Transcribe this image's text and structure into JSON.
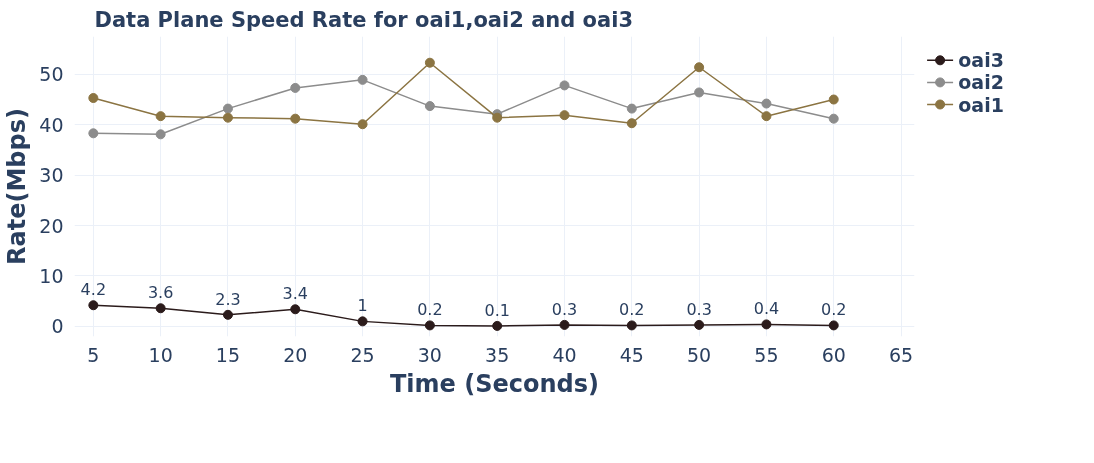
{
  "chart_data": {
    "type": "line",
    "title": "Data Plane Speed Rate for oai1,oai2 and oai3",
    "xlabel": "Time (Seconds)",
    "ylabel": "Rate(Mbps)",
    "x": [
      5,
      10,
      15,
      20,
      25,
      30,
      35,
      40,
      45,
      50,
      55,
      60
    ],
    "series": [
      {
        "name": "oai3",
        "color": "#2b1b1b",
        "values": [
          4.2,
          3.6,
          2.3,
          3.4,
          1,
          0.2,
          0.1,
          0.3,
          0.2,
          0.3,
          0.4,
          0.2
        ],
        "value_labels": [
          "4.2",
          "3.6",
          "2.3",
          "3.4",
          "1",
          "0.2",
          "0.1",
          "0.3",
          "0.2",
          "0.3",
          "0.4",
          "0.2"
        ]
      },
      {
        "name": "oai2",
        "color": "#8c8c8c",
        "values": [
          38.3,
          38.1,
          43.2,
          47.3,
          48.9,
          43.7,
          42.1,
          47.8,
          43.2,
          46.4,
          44.2,
          41.2
        ]
      },
      {
        "name": "oai1",
        "color": "#8b7442",
        "values": [
          45.3,
          41.7,
          41.4,
          41.2,
          40.1,
          52.3,
          41.4,
          41.9,
          40.3,
          51.4,
          41.7,
          45.0
        ]
      }
    ],
    "xlim": [
      3.6,
      66
    ],
    "ylim": [
      -2,
      57.5
    ],
    "xticks": [
      5,
      10,
      15,
      20,
      25,
      30,
      35,
      40,
      45,
      50,
      55,
      60,
      65
    ],
    "yticks": [
      0,
      10,
      20,
      30,
      40,
      50
    ],
    "grid": true,
    "legend": "top right",
    "marker": "circle",
    "line_style": "solid"
  }
}
